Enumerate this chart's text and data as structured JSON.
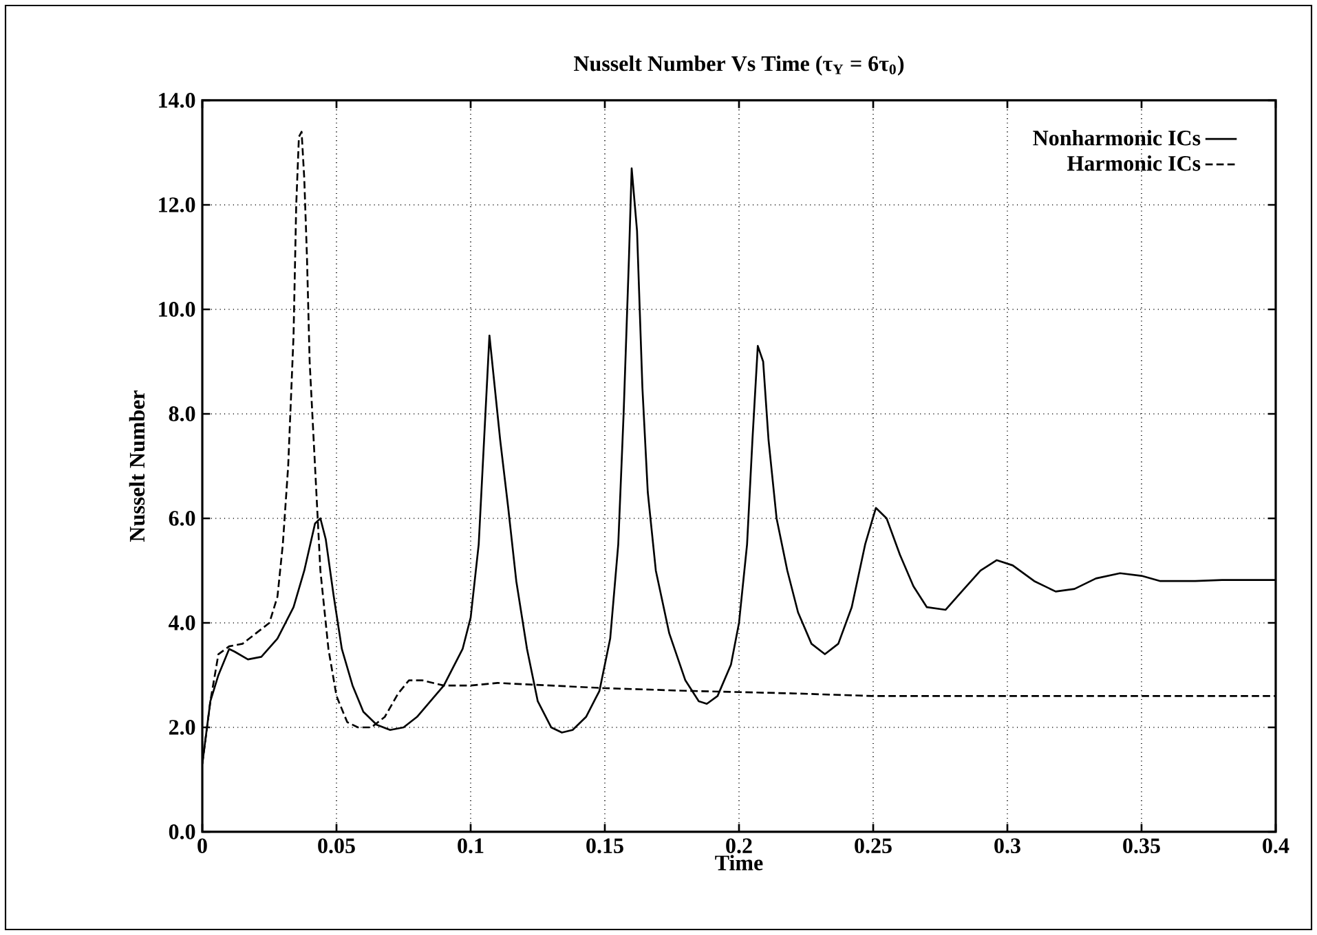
{
  "chart_data": {
    "type": "line",
    "title": "Nusselt Number Vs Time (τ$_{Y}$ = 6τ$_{0}$)",
    "xlabel": "Time",
    "ylabel": "Nusselt Number",
    "xlim": [
      0,
      0.4
    ],
    "ylim": [
      0,
      14
    ],
    "xticks": [
      0,
      0.05,
      0.1,
      0.15,
      0.2,
      0.25,
      0.3,
      0.35,
      0.4
    ],
    "yticks": [
      {
        "value": 0,
        "label": "0.0"
      },
      {
        "value": 2,
        "label": "2.0"
      },
      {
        "value": 4,
        "label": "4.0"
      },
      {
        "value": 6,
        "label": "6.0"
      },
      {
        "value": 8,
        "label": "8.0"
      },
      {
        "value": 10,
        "label": "10.0"
      },
      {
        "value": 12,
        "label": "12.0"
      },
      {
        "value": 14,
        "label": "14.0"
      }
    ],
    "grid": true,
    "legend": "top right",
    "marker": "none",
    "series": [
      {
        "name": "Nonharmonic ICs",
        "color": "#000000",
        "line_style": "solid",
        "x": [
          0,
          0.003,
          0.006,
          0.01,
          0.012,
          0.017,
          0.022,
          0.028,
          0.034,
          0.038,
          0.042,
          0.044,
          0.046,
          0.049,
          0.052,
          0.056,
          0.06,
          0.065,
          0.07,
          0.075,
          0.08,
          0.09,
          0.097,
          0.1,
          0.103,
          0.105,
          0.107,
          0.109,
          0.111,
          0.114,
          0.117,
          0.121,
          0.125,
          0.13,
          0.134,
          0.138,
          0.143,
          0.148,
          0.152,
          0.155,
          0.157,
          0.159,
          0.16,
          0.162,
          0.164,
          0.166,
          0.169,
          0.174,
          0.18,
          0.185,
          0.188,
          0.192,
          0.197,
          0.2,
          0.203,
          0.205,
          0.207,
          0.209,
          0.211,
          0.214,
          0.218,
          0.222,
          0.227,
          0.232,
          0.237,
          0.242,
          0.247,
          0.251,
          0.255,
          0.26,
          0.265,
          0.27,
          0.277,
          0.283,
          0.29,
          0.296,
          0.302,
          0.31,
          0.318,
          0.325,
          0.333,
          0.342,
          0.35,
          0.357,
          0.37,
          0.38,
          0.4
        ],
        "values": [
          1.3,
          2.5,
          3.0,
          3.5,
          3.45,
          3.3,
          3.35,
          3.7,
          4.3,
          5.0,
          5.9,
          6.0,
          5.6,
          4.5,
          3.5,
          2.8,
          2.3,
          2.05,
          1.95,
          2.0,
          2.2,
          2.8,
          3.5,
          4.1,
          5.5,
          7.5,
          9.5,
          8.5,
          7.5,
          6.2,
          4.8,
          3.5,
          2.5,
          2.0,
          1.9,
          1.95,
          2.2,
          2.7,
          3.7,
          5.5,
          8.0,
          11.0,
          12.7,
          11.5,
          8.5,
          6.5,
          5.0,
          3.8,
          2.9,
          2.5,
          2.45,
          2.6,
          3.2,
          4.0,
          5.5,
          7.5,
          9.3,
          9.0,
          7.5,
          6.0,
          5.0,
          4.2,
          3.6,
          3.4,
          3.6,
          4.3,
          5.5,
          6.2,
          6.0,
          5.3,
          4.7,
          4.3,
          4.25,
          4.6,
          5.0,
          5.2,
          5.1,
          4.8,
          4.6,
          4.65,
          4.85,
          4.95,
          4.9,
          4.8,
          4.8,
          4.82,
          4.82
        ]
      },
      {
        "name": "Harmonic ICs",
        "color": "#000000",
        "line_style": "dashed",
        "x": [
          0,
          0.003,
          0.006,
          0.01,
          0.015,
          0.02,
          0.025,
          0.028,
          0.03,
          0.032,
          0.034,
          0.035,
          0.036,
          0.037,
          0.038,
          0.039,
          0.04,
          0.042,
          0.044,
          0.047,
          0.05,
          0.054,
          0.058,
          0.063,
          0.068,
          0.073,
          0.077,
          0.082,
          0.09,
          0.1,
          0.11,
          0.13,
          0.15,
          0.18,
          0.22,
          0.25,
          0.3,
          0.4
        ],
        "values": [
          1.3,
          2.5,
          3.4,
          3.55,
          3.6,
          3.8,
          4.0,
          4.5,
          5.5,
          7.0,
          9.5,
          12.0,
          13.3,
          13.4,
          12.5,
          11.0,
          9.0,
          7.0,
          5.0,
          3.5,
          2.6,
          2.1,
          2.0,
          2.0,
          2.2,
          2.65,
          2.9,
          2.9,
          2.8,
          2.8,
          2.85,
          2.8,
          2.75,
          2.7,
          2.65,
          2.6,
          2.6,
          2.6
        ]
      }
    ]
  }
}
